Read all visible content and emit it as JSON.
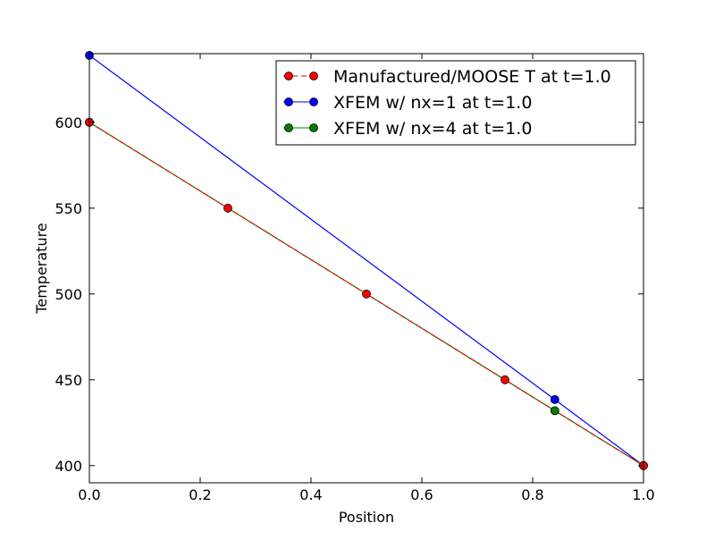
{
  "chart_data": {
    "type": "line",
    "title": "",
    "xlabel": "Position",
    "ylabel": "Temperature",
    "xlim": [
      0.0,
      1.0
    ],
    "ylim": [
      390,
      640
    ],
    "xticks": [
      0.0,
      0.2,
      0.4,
      0.6,
      0.8,
      1.0
    ],
    "xtick_labels": [
      "0.0",
      "0.2",
      "0.4",
      "0.6",
      "0.8",
      "1.0"
    ],
    "yticks": [
      400,
      450,
      500,
      550,
      600
    ],
    "ytick_labels": [
      "400",
      "450",
      "500",
      "550",
      "600"
    ],
    "grid": false,
    "legend_position": "top-right",
    "series": [
      {
        "name": "Manufactured/MOOSE T at t=1.0",
        "color": "#ff0000",
        "line_style": "dashed",
        "marker": "circle",
        "x": [
          0.0,
          0.25,
          0.5,
          0.75,
          1.0
        ],
        "y": [
          600,
          550,
          500,
          450,
          400
        ]
      },
      {
        "name": "XFEM w/ nx=1 at t=1.0",
        "color": "#0000ff",
        "line_style": "solid",
        "marker": "circle",
        "x": [
          0.0,
          0.84,
          1.0
        ],
        "y": [
          639,
          438.5,
          400
        ]
      },
      {
        "name": "XFEM w/ nx=4 at t=1.0",
        "color": "#008000",
        "line_style": "solid",
        "marker": "circle",
        "x": [
          0.0,
          0.84,
          1.0
        ],
        "y": [
          600,
          432,
          400
        ]
      }
    ]
  }
}
